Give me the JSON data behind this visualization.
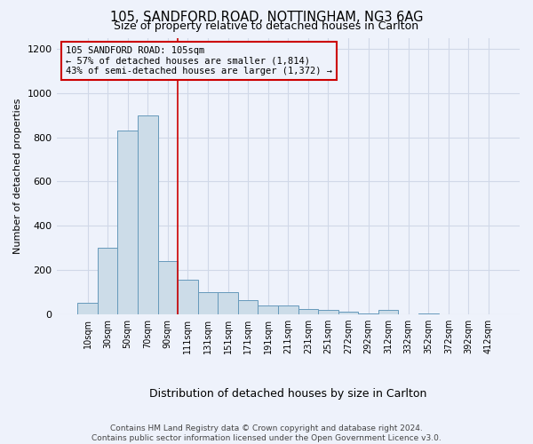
{
  "title_line1": "105, SANDFORD ROAD, NOTTINGHAM, NG3 6AG",
  "title_line2": "Size of property relative to detached houses in Carlton",
  "xlabel": "Distribution of detached houses by size in Carlton",
  "ylabel": "Number of detached properties",
  "annotation_line1": "105 SANDFORD ROAD: 105sqm",
  "annotation_line2": "← 57% of detached houses are smaller (1,814)",
  "annotation_line3": "43% of semi-detached houses are larger (1,372) →",
  "footer_line1": "Contains HM Land Registry data © Crown copyright and database right 2024.",
  "footer_line2": "Contains public sector information licensed under the Open Government Licence v3.0.",
  "bin_labels": [
    "10sqm",
    "30sqm",
    "50sqm",
    "70sqm",
    "90sqm",
    "111sqm",
    "131sqm",
    "151sqm",
    "171sqm",
    "191sqm",
    "211sqm",
    "231sqm",
    "251sqm",
    "272sqm",
    "292sqm",
    "312sqm",
    "332sqm",
    "352sqm",
    "372sqm",
    "392sqm",
    "412sqm"
  ],
  "bar_values": [
    50,
    300,
    830,
    900,
    240,
    155,
    100,
    100,
    65,
    40,
    40,
    25,
    20,
    10,
    5,
    20,
    0,
    5,
    0,
    0,
    0
  ],
  "bar_color": "#ccdce8",
  "bar_edge_color": "#6699bb",
  "marker_bin_index": 4.5,
  "marker_color": "#cc0000",
  "annotation_box_edge_color": "#cc0000",
  "background_color": "#eef2fb",
  "grid_color": "#d0d8e8",
  "ylim": [
    0,
    1250
  ],
  "yticks": [
    0,
    200,
    400,
    600,
    800,
    1000,
    1200
  ]
}
